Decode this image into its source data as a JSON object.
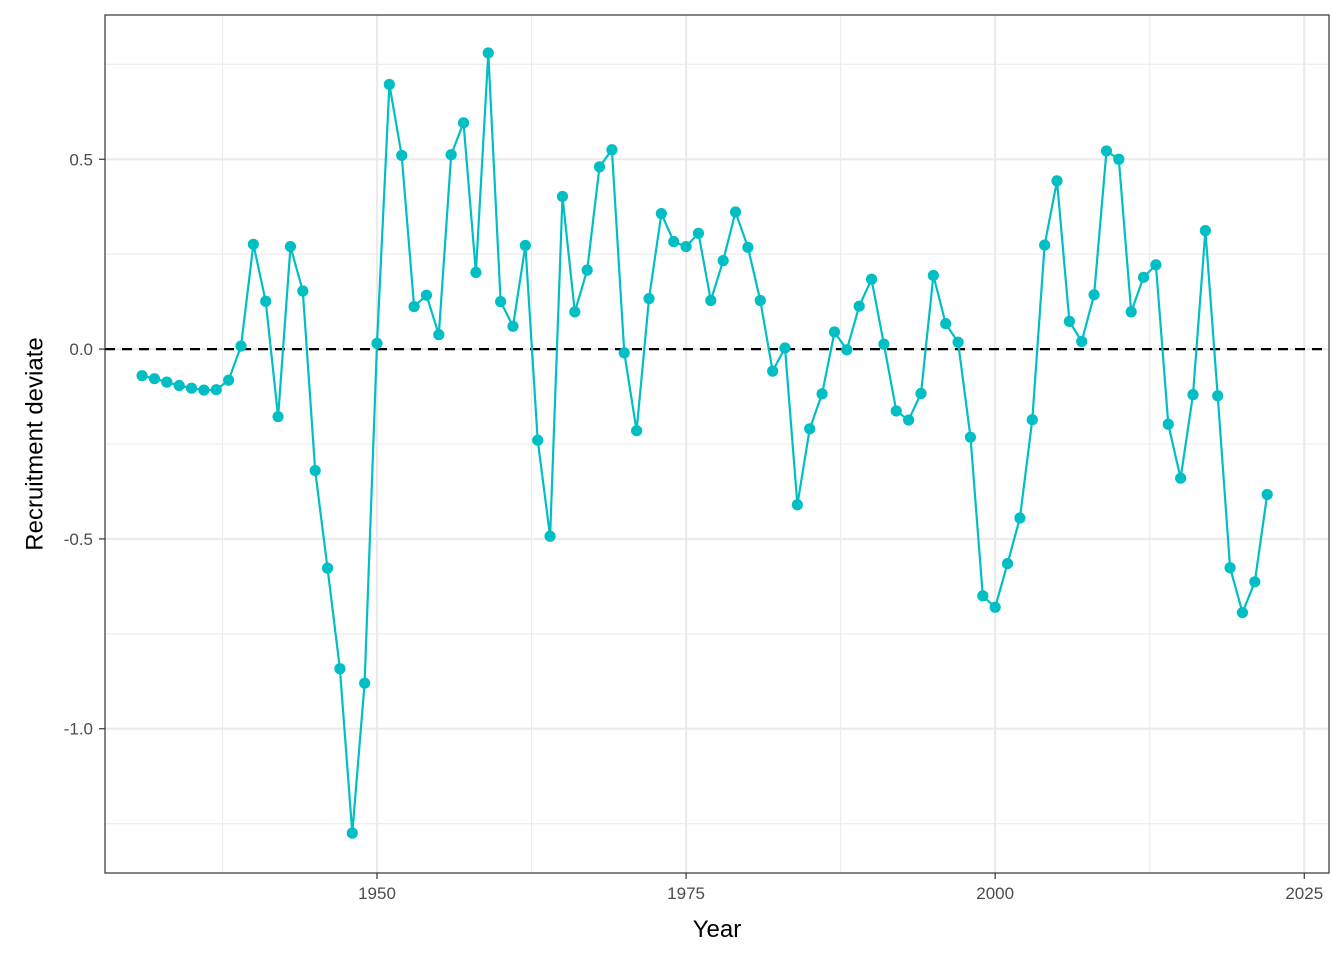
{
  "chart_data": {
    "type": "line",
    "xlabel": "Year",
    "ylabel": "Recruitment deviate",
    "xlim": [
      1928,
      2027
    ],
    "ylim": [
      -1.38,
      0.88
    ],
    "x_ticks": [
      1950,
      1975,
      2000,
      2025
    ],
    "x_tick_labels": [
      "1950",
      "1975",
      "2000",
      "2025"
    ],
    "y_ticks": [
      -1.0,
      -0.5,
      0.0,
      0.5
    ],
    "y_tick_labels": [
      "-1.0",
      "-0.5",
      "0.0",
      "0.5"
    ],
    "reference_line": 0,
    "grid": true,
    "series": [
      {
        "color": "#00BFC4",
        "x": [
          1931,
          1932,
          1933,
          1934,
          1935,
          1936,
          1937,
          1938,
          1939,
          1940,
          1941,
          1942,
          1943,
          1944,
          1945,
          1946,
          1947,
          1948,
          1949,
          1950,
          1951,
          1952,
          1953,
          1954,
          1955,
          1956,
          1957,
          1958,
          1959,
          1960,
          1961,
          1962,
          1963,
          1964,
          1965,
          1966,
          1967,
          1968,
          1969,
          1970,
          1971,
          1972,
          1973,
          1974,
          1975,
          1976,
          1977,
          1978,
          1979,
          1980,
          1981,
          1982,
          1983,
          1984,
          1985,
          1986,
          1987,
          1988,
          1989,
          1990,
          1991,
          1992,
          1993,
          1994,
          1995,
          1996,
          1997,
          1998,
          1999,
          2000,
          2001,
          2002,
          2003,
          2004,
          2005,
          2006,
          2007,
          2008,
          2009,
          2010,
          2011,
          2012,
          2013,
          2014,
          2015,
          2016,
          2017,
          2018,
          2019,
          2020,
          2021,
          2022
        ],
        "y": [
          -0.07,
          -0.078,
          -0.087,
          -0.096,
          -0.103,
          -0.108,
          -0.107,
          -0.082,
          0.008,
          0.276,
          0.126,
          -0.178,
          0.27,
          0.153,
          -0.32,
          -0.577,
          -0.842,
          -1.275,
          -0.88,
          0.015,
          0.697,
          0.51,
          0.112,
          0.142,
          0.038,
          0.512,
          0.596,
          0.202,
          0.78,
          0.125,
          0.06,
          0.273,
          -0.24,
          -0.493,
          0.402,
          0.098,
          0.208,
          0.48,
          0.525,
          -0.01,
          -0.215,
          0.133,
          0.357,
          0.283,
          0.27,
          0.305,
          0.128,
          0.233,
          0.361,
          0.268,
          0.128,
          -0.058,
          0.003,
          -0.41,
          -0.21,
          -0.118,
          0.045,
          -0.002,
          0.113,
          0.184,
          0.013,
          -0.163,
          -0.187,
          -0.117,
          0.194,
          0.067,
          0.018,
          -0.232,
          -0.65,
          -0.68,
          -0.565,
          -0.445,
          -0.186,
          0.274,
          0.443,
          0.073,
          0.02,
          0.143,
          0.522,
          0.5,
          0.098,
          0.189,
          0.222,
          -0.198,
          -0.34,
          -0.12,
          0.312,
          -0.123,
          -0.576,
          -0.694,
          -0.613,
          -0.383
        ]
      }
    ]
  }
}
